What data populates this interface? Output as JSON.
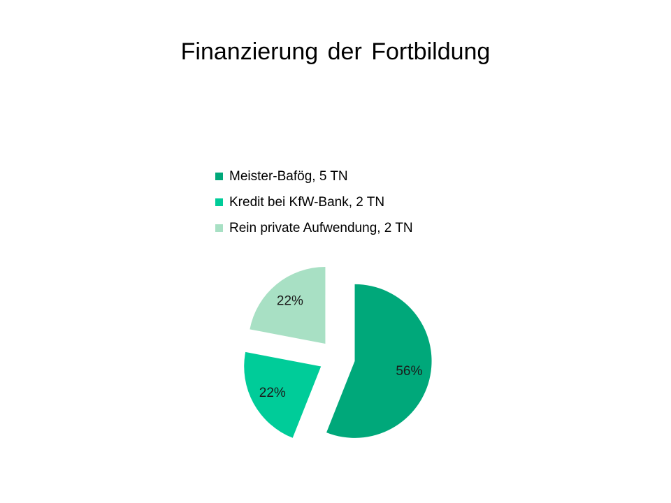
{
  "title": "Finanzierung der Fortbildung",
  "chart_data": {
    "type": "pie",
    "title": "Finanzierung der Fortbildung",
    "categories": [
      "Meister-Bafög, 5 TN",
      "Kredit bei KfW-Bank, 2 TN",
      "Rein private Aufwendung, 2 TN"
    ],
    "values": [
      56,
      22,
      22
    ],
    "data_labels": [
      "56%",
      "22%",
      "22%"
    ],
    "colors": [
      "#00a87a",
      "#00cc99",
      "#a8e0c4"
    ],
    "legend_position": "top",
    "exploded": true
  }
}
